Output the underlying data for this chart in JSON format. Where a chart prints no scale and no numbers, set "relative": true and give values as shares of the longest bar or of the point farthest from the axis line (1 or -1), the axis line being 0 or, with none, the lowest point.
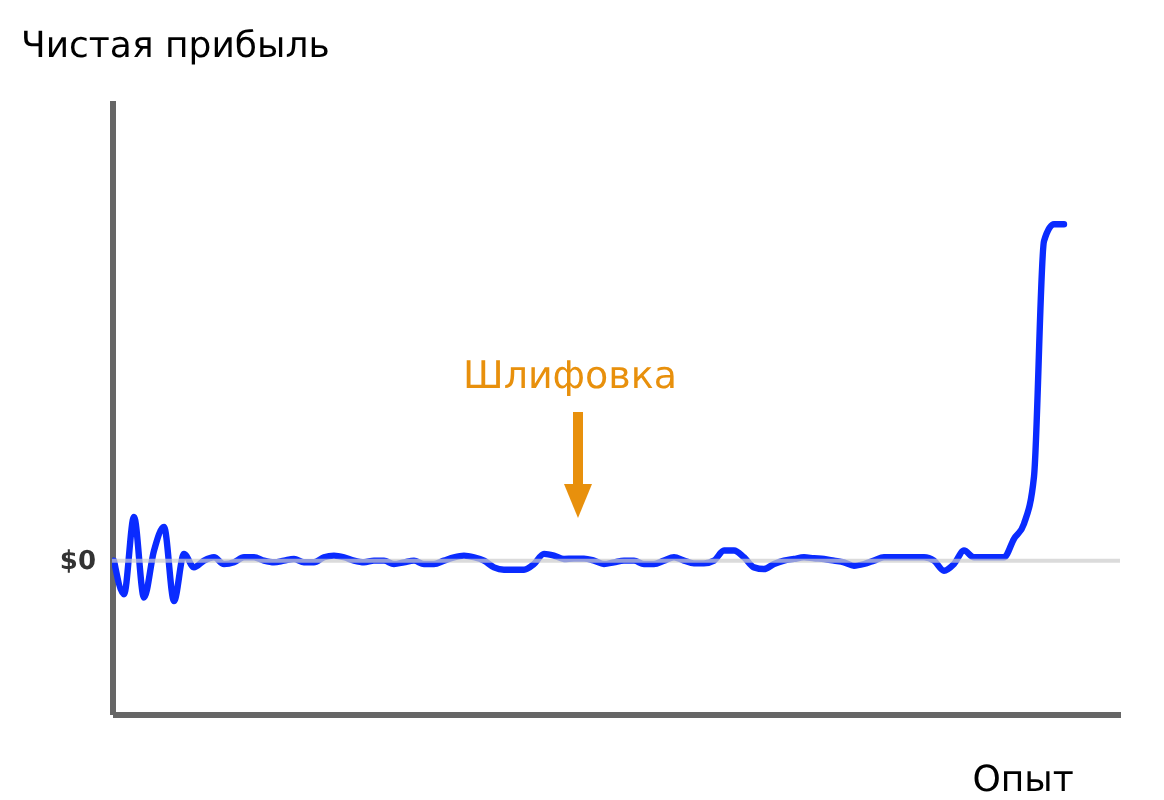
{
  "chart_data": {
    "type": "line",
    "xlabel": "Опыт",
    "ylabel": "Чистая прибыль",
    "relative": true,
    "categories": [
      null,
      null,
      null,
      null,
      null,
      null,
      null,
      null,
      null,
      null,
      null,
      null,
      null,
      null,
      null,
      null,
      null,
      null,
      null,
      null,
      null,
      null,
      null,
      null,
      null,
      null,
      null,
      null,
      null,
      null,
      null,
      null,
      null,
      null,
      null,
      null,
      null,
      null,
      null,
      null,
      null,
      null,
      null,
      null,
      null,
      null,
      null,
      null,
      null,
      null,
      null,
      null,
      null,
      null,
      null,
      null,
      null,
      null,
      null,
      null,
      null,
      null,
      null,
      null,
      null,
      null,
      null,
      null,
      null,
      null,
      null,
      null,
      null,
      null,
      null,
      null,
      null,
      null,
      null,
      null,
      null,
      null,
      null,
      null,
      null,
      null,
      null,
      null,
      null,
      null,
      null,
      null,
      null,
      null,
      null,
      null
    ],
    "series": [
      {
        "color": "#0a2bff",
        "values": [
          0,
          -0.1,
          0.13,
          -0.11,
          0.03,
          0.1,
          -0.12,
          0.02,
          -0.02,
          0,
          0.01,
          -0.01,
          -0.005,
          0.01,
          0.01,
          0,
          -0.005,
          0,
          0.005,
          -0.005,
          -0.005,
          0.01,
          0.015,
          0.01,
          0,
          -0.005,
          0,
          0,
          -0.01,
          -0.005,
          0,
          -0.01,
          -0.01,
          0,
          0.01,
          0.015,
          0.01,
          0,
          -0.02,
          -0.027,
          -0.027,
          -0.027,
          -0.01,
          0.02,
          0.015,
          0.005,
          0.006,
          0.006,
          0,
          -0.01,
          -0.005,
          0,
          0,
          -0.01,
          -0.01,
          0,
          0.01,
          0,
          -0.008,
          -0.008,
          0,
          0.03,
          0.03,
          0.01,
          -0.02,
          -0.025,
          -0.01,
          0,
          0.005,
          0.01,
          0.007,
          0.005,
          0,
          -0.005,
          -0.015,
          -0.01,
          0,
          0.01,
          0.01,
          0.01,
          0.01,
          0.01,
          0,
          -0.03,
          -0.01,
          0.03,
          0.01,
          0.01,
          0.01,
          0.01,
          0.065,
          0.11,
          0.25,
          0.95,
          1,
          1
        ]
      }
    ],
    "ref_lines": [
      {
        "axis": "y",
        "value": 0,
        "label": "$0",
        "color": "#cccccc"
      }
    ],
    "annotations": [
      "Шлифовка"
    ]
  }
}
